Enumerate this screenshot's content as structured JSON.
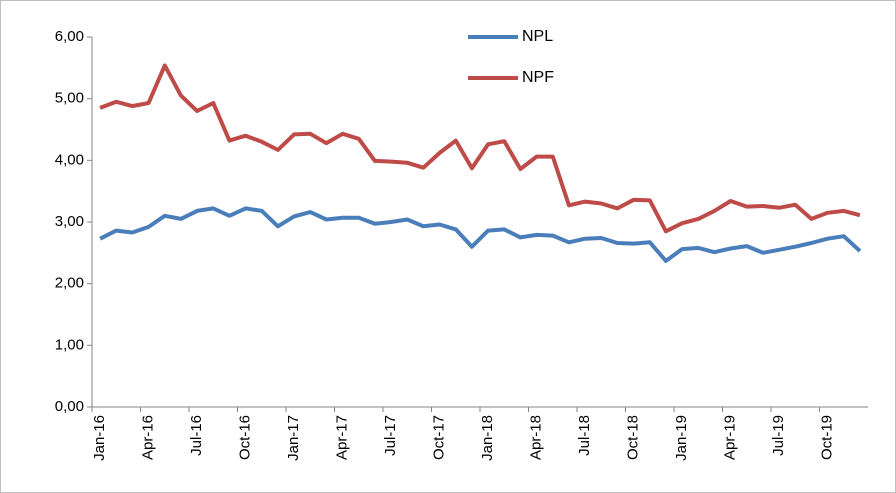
{
  "chart_data": {
    "type": "line",
    "categories": [
      "Jan-16",
      null,
      null,
      "Apr-16",
      null,
      null,
      "Jul-16",
      null,
      null,
      "Oct-16",
      null,
      null,
      "Jan-17",
      null,
      null,
      "Apr-17",
      null,
      null,
      "Jul-17",
      null,
      null,
      "Oct-17",
      null,
      null,
      "Jan-18",
      null,
      null,
      "Apr-18",
      null,
      null,
      "Jul-18",
      null,
      null,
      "Oct-18",
      null,
      null,
      "Jan-19",
      null,
      null,
      "Apr-19",
      null,
      null,
      "Jul-19",
      null,
      null,
      "Oct-19",
      null,
      null
    ],
    "series": [
      {
        "name": "NPL",
        "color": "#4a7ebb",
        "values": [
          2.73,
          2.86,
          2.83,
          2.92,
          3.1,
          3.05,
          3.18,
          3.22,
          3.1,
          3.22,
          3.18,
          2.93,
          3.09,
          3.16,
          3.04,
          3.07,
          3.07,
          2.97,
          3.0,
          3.04,
          2.93,
          2.96,
          2.88,
          2.6,
          2.86,
          2.88,
          2.75,
          2.79,
          2.78,
          2.67,
          2.73,
          2.74,
          2.66,
          2.65,
          2.67,
          2.37,
          2.56,
          2.58,
          2.51,
          2.57,
          2.61,
          2.5,
          2.55,
          2.6,
          2.66,
          2.73,
          2.77,
          2.53
        ]
      },
      {
        "name": "NPF",
        "color": "#be4b48",
        "values": [
          4.85,
          4.95,
          4.88,
          4.93,
          5.54,
          5.05,
          4.8,
          4.93,
          4.32,
          4.4,
          4.3,
          4.17,
          4.42,
          4.43,
          4.28,
          4.43,
          4.35,
          3.99,
          3.98,
          3.96,
          3.88,
          4.12,
          4.32,
          3.87,
          4.26,
          4.31,
          3.86,
          4.06,
          4.06,
          3.27,
          3.33,
          3.3,
          3.22,
          3.36,
          3.35,
          2.85,
          2.98,
          3.05,
          3.18,
          3.34,
          3.25,
          3.26,
          3.23,
          3.28,
          3.05,
          3.15,
          3.18,
          3.11
        ]
      }
    ],
    "ylim": [
      0,
      6
    ],
    "yticks": [
      {
        "value": 0,
        "label": "0,00"
      },
      {
        "value": 1,
        "label": "1,00"
      },
      {
        "value": 2,
        "label": "2,00"
      },
      {
        "value": 3,
        "label": "3,00"
      },
      {
        "value": 4,
        "label": "4,00"
      },
      {
        "value": 5,
        "label": "5,00"
      },
      {
        "value": 6,
        "label": "6,00"
      }
    ],
    "grid": false,
    "legend": "top"
  }
}
